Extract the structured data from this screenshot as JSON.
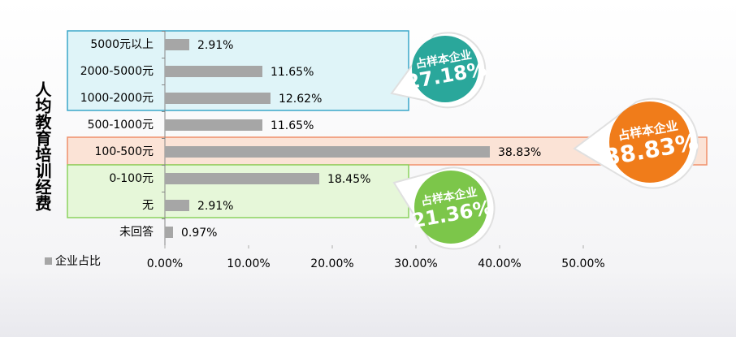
{
  "chart_data": {
    "type": "bar",
    "orientation": "horizontal",
    "y_label": "人均教育培训经费",
    "categories": [
      "5000元以上",
      "2000-5000元",
      "1000-2000元",
      "500-1000元",
      "100-500元",
      "0-100元",
      "无",
      "未回答"
    ],
    "series": [
      {
        "name": "企业占比",
        "color": "#a6a6a6",
        "values": [
          2.91,
          11.65,
          12.62,
          11.65,
          38.83,
          18.45,
          2.91,
          0.97
        ],
        "value_labels": [
          "2.91%",
          "11.65%",
          "12.62%",
          "11.65%",
          "38.83%",
          "18.45%",
          "2.91%",
          "0.97%"
        ]
      }
    ],
    "xlim": [
      0,
      50
    ],
    "xticks": [
      {
        "value": 0,
        "label": "0.00%"
      },
      {
        "value": 10,
        "label": "10.00%"
      },
      {
        "value": 20,
        "label": "20.00%"
      },
      {
        "value": 30,
        "label": "30.00%"
      },
      {
        "value": 40,
        "label": "40.00%"
      },
      {
        "value": 50,
        "label": "50.00%"
      }
    ],
    "legend": "bottom-left",
    "annotations": [
      {
        "text": "占样本企业",
        "label": "27.18%",
        "color": "#2aa79b"
      },
      {
        "text": "占样本企业",
        "label": "38.83%",
        "color": "#f07c1a"
      },
      {
        "text": "占样本企业",
        "label": "21.36%",
        "color": "#7cc64a"
      }
    ]
  }
}
